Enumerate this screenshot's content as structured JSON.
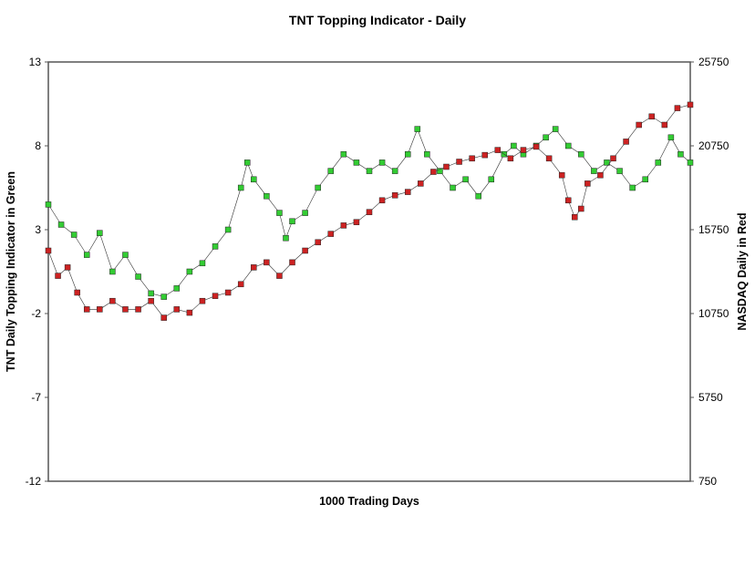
{
  "chart_data": {
    "type": "scatter",
    "title": "TNT Topping Indicator - Daily",
    "xlabel": "1000 Trading Days",
    "ylabel_left": "TNT Daily Topping Indicator in Green",
    "ylabel_right": "NASDAQ Daily in Red",
    "x_range": [
      0,
      1000
    ],
    "y_left_range": [
      -12,
      13
    ],
    "y_left_ticks": [
      "13",
      "8",
      "3",
      "-2",
      "-7",
      "-12"
    ],
    "y_right_range": [
      750,
      25750
    ],
    "y_right_ticks": [
      "25750",
      "20750",
      "15750",
      "10750",
      "5750",
      "750"
    ],
    "grid": false,
    "series": [
      {
        "name": "TNT Daily Topping Indicator",
        "axis": "left",
        "color": "#33cc33",
        "points": [
          [
            0,
            4.5
          ],
          [
            20,
            3.3
          ],
          [
            40,
            2.7
          ],
          [
            60,
            1.5
          ],
          [
            80,
            2.8
          ],
          [
            100,
            0.5
          ],
          [
            120,
            1.5
          ],
          [
            140,
            0.2
          ],
          [
            160,
            -0.8
          ],
          [
            180,
            -1.0
          ],
          [
            200,
            -0.5
          ],
          [
            220,
            0.5
          ],
          [
            240,
            1.0
          ],
          [
            260,
            2.0
          ],
          [
            280,
            3.0
          ],
          [
            300,
            5.5
          ],
          [
            310,
            7.0
          ],
          [
            320,
            6.0
          ],
          [
            340,
            5.0
          ],
          [
            360,
            4.0
          ],
          [
            370,
            2.5
          ],
          [
            380,
            3.5
          ],
          [
            400,
            4.0
          ],
          [
            420,
            5.5
          ],
          [
            440,
            6.5
          ],
          [
            460,
            7.5
          ],
          [
            480,
            7.0
          ],
          [
            500,
            6.5
          ],
          [
            520,
            7.0
          ],
          [
            540,
            6.5
          ],
          [
            560,
            7.5
          ],
          [
            575,
            9.0
          ],
          [
            590,
            7.5
          ],
          [
            610,
            6.5
          ],
          [
            630,
            5.5
          ],
          [
            650,
            6.0
          ],
          [
            670,
            5.0
          ],
          [
            690,
            6.0
          ],
          [
            710,
            7.5
          ],
          [
            725,
            8.0
          ],
          [
            740,
            7.5
          ],
          [
            760,
            8.0
          ],
          [
            775,
            8.5
          ],
          [
            790,
            9.0
          ],
          [
            810,
            8.0
          ],
          [
            830,
            7.5
          ],
          [
            850,
            6.5
          ],
          [
            870,
            7.0
          ],
          [
            890,
            6.5
          ],
          [
            910,
            5.5
          ],
          [
            930,
            6.0
          ],
          [
            950,
            7.0
          ],
          [
            970,
            8.5
          ],
          [
            985,
            7.5
          ],
          [
            1000,
            7.0
          ]
        ]
      },
      {
        "name": "NASDAQ Daily",
        "axis": "right",
        "color": "#cc2222",
        "points": [
          [
            0,
            14500
          ],
          [
            15,
            13000
          ],
          [
            30,
            13500
          ],
          [
            45,
            12000
          ],
          [
            60,
            11000
          ],
          [
            80,
            11000
          ],
          [
            100,
            11500
          ],
          [
            120,
            11000
          ],
          [
            140,
            11000
          ],
          [
            160,
            11500
          ],
          [
            180,
            10500
          ],
          [
            200,
            11000
          ],
          [
            220,
            10800
          ],
          [
            240,
            11500
          ],
          [
            260,
            11800
          ],
          [
            280,
            12000
          ],
          [
            300,
            12500
          ],
          [
            320,
            13500
          ],
          [
            340,
            13800
          ],
          [
            360,
            13000
          ],
          [
            380,
            13800
          ],
          [
            400,
            14500
          ],
          [
            420,
            15000
          ],
          [
            440,
            15500
          ],
          [
            460,
            16000
          ],
          [
            480,
            16200
          ],
          [
            500,
            16800
          ],
          [
            520,
            17500
          ],
          [
            540,
            17800
          ],
          [
            560,
            18000
          ],
          [
            580,
            18500
          ],
          [
            600,
            19200
          ],
          [
            620,
            19500
          ],
          [
            640,
            19800
          ],
          [
            660,
            20000
          ],
          [
            680,
            20200
          ],
          [
            700,
            20500
          ],
          [
            720,
            20000
          ],
          [
            740,
            20500
          ],
          [
            760,
            20700
          ],
          [
            780,
            20000
          ],
          [
            800,
            19000
          ],
          [
            810,
            17500
          ],
          [
            820,
            16500
          ],
          [
            830,
            17000
          ],
          [
            840,
            18500
          ],
          [
            860,
            19000
          ],
          [
            880,
            20000
          ],
          [
            900,
            21000
          ],
          [
            920,
            22000
          ],
          [
            940,
            22500
          ],
          [
            960,
            22000
          ],
          [
            980,
            23000
          ],
          [
            1000,
            23200
          ]
        ]
      }
    ]
  }
}
